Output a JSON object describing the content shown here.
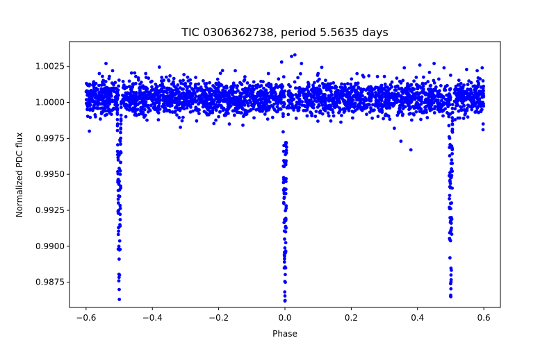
{
  "chart_data": {
    "type": "scatter",
    "title": "TIC 0306362738, period 5.5635 days",
    "xlabel": "Phase",
    "ylabel": "Normalized PDC flux",
    "xlim": [
      -0.65,
      0.65
    ],
    "ylim": [
      0.98575,
      1.00422
    ],
    "xticks": [
      -0.6,
      -0.4,
      -0.2,
      0.0,
      0.2,
      0.4,
      0.6
    ],
    "xtick_labels": [
      "−0.6",
      "−0.4",
      "−0.2",
      "0.0",
      "0.2",
      "0.4",
      "0.6"
    ],
    "yticks": [
      0.9875,
      0.99,
      0.9925,
      0.995,
      0.9975,
      1.0,
      1.0025
    ],
    "ytick_labels": [
      "0.9875",
      "0.9900",
      "0.9925",
      "0.9950",
      "0.9975",
      "1.0000",
      "1.0025"
    ],
    "grid": false,
    "marker_color": "#0000ff",
    "phase_range": [
      -0.6,
      0.6
    ],
    "baseline_flux": 1.0003,
    "baseline_scatter": 0.0006,
    "baseline_spread_band": [
      0.9975,
      1.0033
    ],
    "transit_depth_min": 0.9862,
    "transit_centers": [
      -0.5,
      0.0,
      0.5
    ],
    "transit_half_width": 0.006,
    "data_gaps": [
      [
        -0.5,
        -0.49
      ],
      [
        0.0,
        0.01
      ],
      [
        0.5,
        0.51
      ]
    ],
    "sampled_points": [
      [
        -0.598,
        1.0008
      ],
      [
        -0.59,
        0.998
      ],
      [
        -0.58,
        1.0012
      ],
      [
        -0.56,
        1.002
      ],
      [
        -0.54,
        1.0027
      ],
      [
        -0.52,
        1.0022
      ],
      [
        -0.505,
        0.9985
      ],
      [
        -0.503,
        0.996
      ],
      [
        -0.502,
        0.9935
      ],
      [
        -0.501,
        0.99
      ],
      [
        -0.5,
        0.987
      ],
      [
        -0.499,
        0.988
      ],
      [
        -0.498,
        0.9915
      ],
      [
        -0.497,
        0.995
      ],
      [
        -0.495,
        0.9985
      ],
      [
        -0.48,
        0.999
      ],
      [
        -0.45,
        1.0018
      ],
      [
        -0.42,
        1.002
      ],
      [
        -0.35,
        1.0015
      ],
      [
        -0.28,
        1.0002
      ],
      [
        -0.2,
        0.999
      ],
      [
        -0.15,
        1.0022
      ],
      [
        -0.1,
        0.9998
      ],
      [
        -0.05,
        1.002
      ],
      [
        -0.01,
        1.0028
      ],
      [
        -0.003,
        0.997
      ],
      [
        -0.002,
        0.994
      ],
      [
        -0.001,
        0.9905
      ],
      [
        0.0,
        0.9862
      ],
      [
        0.001,
        0.9875
      ],
      [
        0.002,
        0.991
      ],
      [
        0.003,
        0.9945
      ],
      [
        0.004,
        0.9972
      ],
      [
        0.02,
        1.0032
      ],
      [
        0.03,
        1.0033
      ],
      [
        0.05,
        1.0027
      ],
      [
        0.1,
        1.002
      ],
      [
        0.2,
        1.001
      ],
      [
        0.3,
        1.0018
      ],
      [
        0.33,
        0.9982
      ],
      [
        0.35,
        0.9973
      ],
      [
        0.36,
        1.0024
      ],
      [
        0.38,
        0.9967
      ],
      [
        0.45,
        1.0027
      ],
      [
        0.48,
        1.0024
      ],
      [
        0.497,
        0.9975
      ],
      [
        0.498,
        0.9945
      ],
      [
        0.499,
        0.991
      ],
      [
        0.5,
        0.9866
      ],
      [
        0.501,
        0.988
      ],
      [
        0.502,
        0.992
      ],
      [
        0.503,
        0.996
      ],
      [
        0.505,
        0.9985
      ],
      [
        0.54,
        1.0012
      ],
      [
        0.58,
        1.0022
      ],
      [
        0.595,
        1.0024
      ],
      [
        0.598,
        0.9985
      ]
    ]
  }
}
